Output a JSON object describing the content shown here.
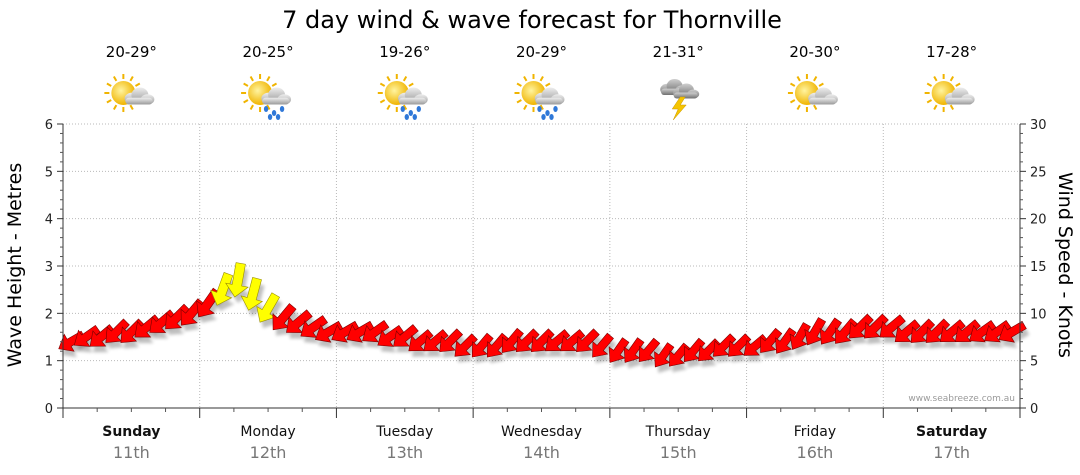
{
  "chart_data": {
    "type": "line",
    "title": "7 day wind & wave forecast for Thornville",
    "ylabel_left": "Wave Height - Metres",
    "ylabel_right": "Wind Speed - Knots",
    "ylim_left": [
      0,
      6
    ],
    "ylim_right": [
      0,
      30
    ],
    "yticks_left": [
      "0",
      "1",
      "2",
      "3",
      "4",
      "5",
      "6"
    ],
    "yticks_right": [
      "0",
      "5",
      "10",
      "15",
      "20",
      "25",
      "30"
    ],
    "credit": "www.seabreeze.com.au",
    "days": [
      {
        "name": "Sunday",
        "date": "11th",
        "bold": true,
        "temp": "20-29°",
        "weather": "partly-cloudy"
      },
      {
        "name": "Monday",
        "date": "12th",
        "bold": false,
        "temp": "20-25°",
        "weather": "showers"
      },
      {
        "name": "Tuesday",
        "date": "13th",
        "bold": false,
        "temp": "19-26°",
        "weather": "showers"
      },
      {
        "name": "Wednesday",
        "date": "14th",
        "bold": false,
        "temp": "20-29°",
        "weather": "showers"
      },
      {
        "name": "Thursday",
        "date": "15th",
        "bold": false,
        "temp": "21-31°",
        "weather": "storm"
      },
      {
        "name": "Friday",
        "date": "16th",
        "bold": false,
        "temp": "20-30°",
        "weather": "partly-cloudy"
      },
      {
        "name": "Saturday",
        "date": "17th",
        "bold": true,
        "temp": "17-28°",
        "weather": "partly-cloudy"
      }
    ],
    "series": [
      {
        "name": "Wind",
        "units": "knots",
        "day_offset": [
          0,
          0.11,
          0.22,
          0.33,
          0.44,
          0.55,
          0.66,
          0.77,
          0.88,
          1.0,
          1.11,
          1.22,
          1.33,
          1.44,
          1.55,
          1.66,
          1.77,
          1.88,
          2.0,
          2.11,
          2.22,
          2.33,
          2.44,
          2.55,
          2.66,
          2.77,
          2.88,
          3.0,
          3.11,
          3.22,
          3.33,
          3.44,
          3.55,
          3.66,
          3.77,
          3.88,
          4.0,
          4.11,
          4.22,
          4.33,
          4.44,
          4.55,
          4.66,
          4.77,
          4.88,
          5.0,
          5.11,
          5.22,
          5.33,
          5.44,
          5.55,
          5.66,
          5.77,
          5.88,
          6.0,
          6.11,
          6.22,
          6.33,
          6.44,
          6.55,
          6.66,
          6.77,
          6.88
        ],
        "speed": [
          7,
          7.5,
          7.5,
          8,
          8,
          8.5,
          9,
          9.5,
          10,
          11,
          12.5,
          13.5,
          12,
          10.5,
          9.5,
          9,
          8.5,
          8,
          8,
          8,
          8,
          7.5,
          7.5,
          7,
          7,
          7,
          6.5,
          6.5,
          6.5,
          7,
          7,
          7,
          7,
          7,
          7,
          6.5,
          6,
          6,
          6,
          5.5,
          5.5,
          6,
          6,
          6.5,
          6.5,
          6.5,
          7,
          7,
          7.5,
          8,
          8,
          8,
          8.5,
          8.5,
          8.5,
          8,
          8,
          8,
          8,
          8,
          8,
          8,
          8
        ],
        "direction_deg": [
          240,
          235,
          230,
          225,
          225,
          230,
          230,
          225,
          220,
          215,
          200,
          190,
          195,
          210,
          220,
          230,
          235,
          240,
          240,
          240,
          235,
          235,
          230,
          230,
          230,
          225,
          225,
          220,
          220,
          220,
          225,
          225,
          230,
          230,
          225,
          220,
          215,
          215,
          220,
          215,
          220,
          220,
          225,
          225,
          225,
          230,
          220,
          215,
          210,
          210,
          215,
          220,
          225,
          225,
          230,
          230,
          225,
          225,
          230,
          230,
          235,
          235,
          240
        ],
        "highlight_range": [
          10,
          13
        ]
      }
    ]
  }
}
